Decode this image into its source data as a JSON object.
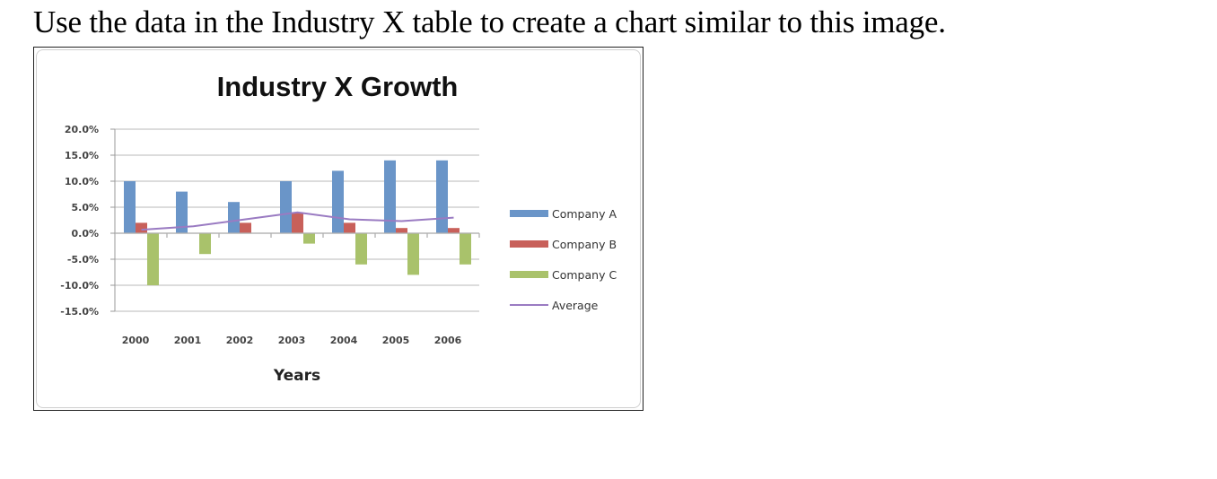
{
  "instruction": "Use the data in the Industry X table to create a chart similar to this image.",
  "chart_data": {
    "type": "bar",
    "combo": "clustered bar + line (Average)",
    "title": "Industry X Growth",
    "xlabel": "Years",
    "ylabel": "",
    "categories": [
      "2000",
      "2001",
      "2002",
      "2003",
      "2004",
      "2005",
      "2006"
    ],
    "series": [
      {
        "name": "Company A",
        "type": "bar",
        "color": "#6a95c8",
        "values": [
          10,
          8,
          6,
          10,
          12,
          14,
          14
        ]
      },
      {
        "name": "Company B",
        "type": "bar",
        "color": "#c8605a",
        "values": [
          2,
          0,
          2,
          4,
          2,
          1,
          1
        ]
      },
      {
        "name": "Company C",
        "type": "bar",
        "color": "#a9c26b",
        "values": [
          -10,
          -4,
          0,
          -2,
          -6,
          -8,
          -6
        ]
      },
      {
        "name": "Average",
        "type": "line",
        "color": "#9a7bc2",
        "values": [
          0.67,
          1.33,
          2.67,
          4.0,
          2.67,
          2.33,
          3.0
        ]
      }
    ],
    "yticks": [
      "20.0%",
      "15.0%",
      "10.0%",
      "5.0%",
      "0.0%",
      "-5.0%",
      "-10.0%",
      "-15.0%"
    ],
    "ylim": [
      -15,
      20
    ],
    "grid": true,
    "legend_position": "right",
    "value_format": "percent"
  }
}
